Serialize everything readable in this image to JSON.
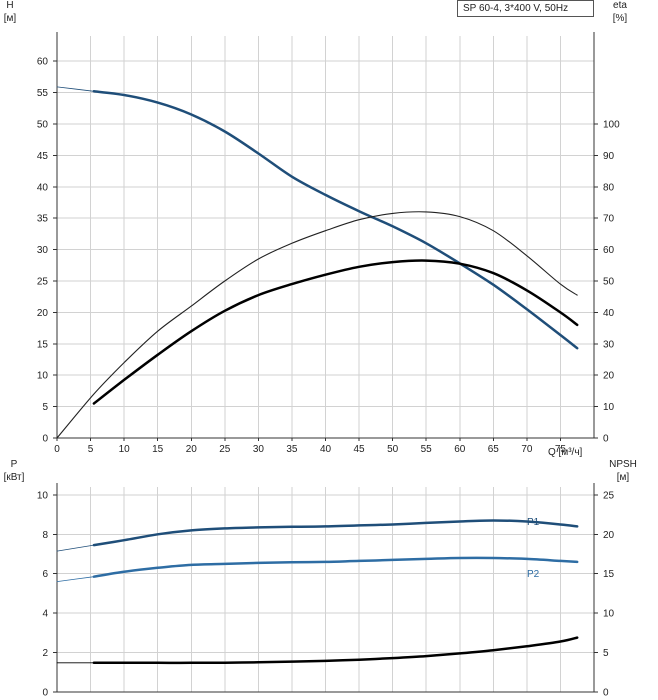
{
  "chart_data": [
    {
      "type": "line",
      "title": "SP 60-4, 3*400 V, 50Hz",
      "xlabel": "Q [м³/ч]",
      "ylabel_left": "H\n[м]",
      "ylabel_right": "eta\n[%]",
      "xlim": [
        0,
        80
      ],
      "ylim_left": [
        0,
        64
      ],
      "ylim_right": [
        0,
        128
      ],
      "x_ticks": [
        0,
        5,
        10,
        15,
        20,
        25,
        30,
        35,
        40,
        45,
        50,
        55,
        60,
        65,
        70,
        75
      ],
      "y_ticks_left": [
        0,
        5,
        10,
        15,
        20,
        25,
        30,
        35,
        40,
        45,
        50,
        55,
        60
      ],
      "y_ticks_right": [
        0,
        10,
        20,
        30,
        40,
        50,
        60,
        70,
        80,
        90,
        100
      ],
      "series": [
        {
          "name": "H",
          "axis": "left",
          "color": "#1f4e79",
          "x": [
            5.5,
            10,
            15,
            20,
            25,
            30,
            35,
            40,
            45,
            50,
            55,
            60,
            65,
            70,
            75,
            77.5
          ],
          "y": [
            55.2,
            54.6,
            53.4,
            51.5,
            48.8,
            45.3,
            41.6,
            38.7,
            36.1,
            33.7,
            31.0,
            27.8,
            24.4,
            20.5,
            16.4,
            14.3
          ]
        },
        {
          "name": "H extrapolated",
          "axis": "left",
          "color": "#1f4e79",
          "x": [
            0,
            5.5
          ],
          "y": [
            55.9,
            55.2
          ]
        },
        {
          "name": "eta thin",
          "axis": "right",
          "color": "#222222",
          "x": [
            0,
            5.5,
            10,
            15,
            20,
            25,
            30,
            35,
            40,
            45,
            50,
            55,
            60,
            65,
            70,
            75,
            77.5
          ],
          "y": [
            0,
            14,
            24,
            34,
            42,
            50,
            57,
            62,
            66,
            69.5,
            71.5,
            72,
            70.5,
            66,
            58,
            49,
            45.5
          ]
        },
        {
          "name": "eta",
          "axis": "right",
          "color": "#000000",
          "x": [
            5.5,
            10,
            15,
            20,
            25,
            30,
            35,
            40,
            45,
            50,
            55,
            60,
            65,
            70,
            75,
            77.5
          ],
          "y": [
            11,
            18.5,
            26.5,
            34,
            40.5,
            45.5,
            49,
            52,
            54.5,
            56,
            56.5,
            55.5,
            52.5,
            47,
            40,
            36
          ]
        }
      ]
    },
    {
      "type": "line",
      "xlabel": "Q [м³/ч]",
      "ylabel_left": "P\n[кВт]",
      "ylabel_right": "NPSH\n[м]",
      "xlim": [
        0,
        80
      ],
      "ylim_left": [
        0,
        10.4
      ],
      "ylim_right": [
        0,
        26
      ],
      "y_ticks_left": [
        0,
        2,
        4,
        6,
        8,
        10
      ],
      "y_ticks_right": [
        0,
        5,
        10,
        15,
        20,
        25
      ],
      "series": [
        {
          "name": "P1",
          "axis": "left",
          "color": "#1f4e79",
          "x": [
            5.5,
            10,
            15,
            20,
            25,
            30,
            35,
            40,
            45,
            50,
            55,
            60,
            65,
            70,
            75,
            77.5
          ],
          "y": [
            7.45,
            7.7,
            8.0,
            8.2,
            8.3,
            8.35,
            8.38,
            8.4,
            8.45,
            8.5,
            8.58,
            8.65,
            8.7,
            8.65,
            8.5,
            8.4
          ]
        },
        {
          "name": "P1 extrapolated",
          "axis": "left",
          "color": "#1f4e79",
          "x": [
            0,
            5.5
          ],
          "y": [
            7.15,
            7.45
          ]
        },
        {
          "name": "P2",
          "axis": "left",
          "color": "#2e6da4",
          "x": [
            5.5,
            10,
            15,
            20,
            25,
            30,
            35,
            40,
            45,
            50,
            55,
            60,
            65,
            70,
            75,
            77.5
          ],
          "y": [
            5.85,
            6.1,
            6.3,
            6.45,
            6.5,
            6.55,
            6.58,
            6.6,
            6.65,
            6.7,
            6.75,
            6.8,
            6.8,
            6.75,
            6.65,
            6.6
          ]
        },
        {
          "name": "P2 extrapolated",
          "axis": "left",
          "color": "#2e6da4",
          "x": [
            0,
            5.5
          ],
          "y": [
            5.6,
            5.85
          ]
        },
        {
          "name": "NPSH",
          "axis": "right",
          "color": "#000000",
          "x": [
            5.5,
            10,
            15,
            20,
            25,
            30,
            35,
            40,
            45,
            50,
            55,
            60,
            65,
            70,
            75,
            77.5
          ],
          "y": [
            3.7,
            3.7,
            3.7,
            3.7,
            3.72,
            3.77,
            3.85,
            3.95,
            4.1,
            4.3,
            4.55,
            4.9,
            5.3,
            5.8,
            6.4,
            6.9
          ]
        },
        {
          "name": "NPSH extrapolated",
          "axis": "right",
          "color": "#000000",
          "x": [
            0,
            5.5
          ],
          "y": [
            3.7,
            3.7
          ]
        }
      ],
      "labels": {
        "p1": "P1",
        "p2": "P2"
      }
    }
  ]
}
